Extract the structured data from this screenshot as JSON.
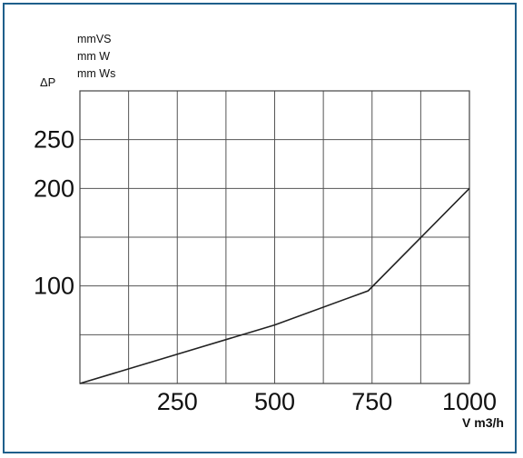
{
  "chart_data": {
    "type": "line",
    "y_symbol": "ΔP",
    "y_units": [
      "mmVS",
      "mm W",
      "mm Ws"
    ],
    "x_unit": "V m3/h",
    "x_range": [
      0,
      1000
    ],
    "y_range": [
      0,
      250
    ],
    "grid": true,
    "x_ticks": [
      {
        "value": 250,
        "label": "250"
      },
      {
        "value": 500,
        "label": "500"
      },
      {
        "value": 750,
        "label": "750"
      },
      {
        "value": 1000,
        "label": "1000"
      }
    ],
    "y_ticks": [
      {
        "value": 100,
        "label": "100"
      },
      {
        "value": 200,
        "label": "200"
      },
      {
        "value": 250,
        "label": "250"
      }
    ],
    "series": [
      {
        "x": [
          0,
          500,
          740,
          1000
        ],
        "y": [
          0,
          60,
          95,
          200
        ]
      }
    ],
    "colors": {
      "frame": "#1f5f8b",
      "grid": "#555555",
      "line": "#222222"
    }
  }
}
